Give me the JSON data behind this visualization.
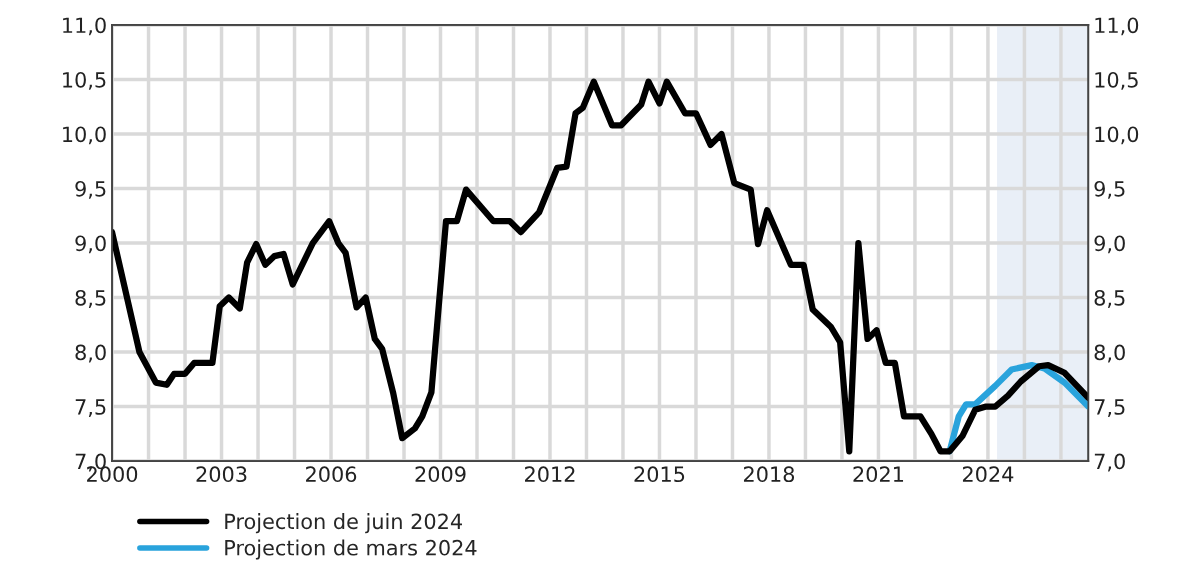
{
  "chart_data": {
    "type": "line",
    "xlim": [
      2000,
      2026.75
    ],
    "xticks": [
      {
        "value": 2000,
        "label": "2000"
      },
      {
        "value": 2001,
        "label": null
      },
      {
        "value": 2002,
        "label": null
      },
      {
        "value": 2003,
        "label": "2003"
      },
      {
        "value": 2004,
        "label": null
      },
      {
        "value": 2005,
        "label": null
      },
      {
        "value": 2006,
        "label": "2006"
      },
      {
        "value": 2007,
        "label": null
      },
      {
        "value": 2008,
        "label": null
      },
      {
        "value": 2009,
        "label": "2009"
      },
      {
        "value": 2010,
        "label": null
      },
      {
        "value": 2011,
        "label": null
      },
      {
        "value": 2012,
        "label": "2012"
      },
      {
        "value": 2013,
        "label": null
      },
      {
        "value": 2014,
        "label": null
      },
      {
        "value": 2015,
        "label": "2015"
      },
      {
        "value": 2016,
        "label": null
      },
      {
        "value": 2017,
        "label": null
      },
      {
        "value": 2018,
        "label": "2018"
      },
      {
        "value": 2019,
        "label": null
      },
      {
        "value": 2020,
        "label": null
      },
      {
        "value": 2021,
        "label": "2021"
      },
      {
        "value": 2022,
        "label": null
      },
      {
        "value": 2023,
        "label": null
      },
      {
        "value": 2024,
        "label": "2024"
      },
      {
        "value": 2025,
        "label": null
      },
      {
        "value": 2026,
        "label": null
      }
    ],
    "ylim": [
      7.0,
      11.0
    ],
    "yticks": [
      {
        "value": 7.0,
        "label": "7,0"
      },
      {
        "value": 7.5,
        "label": "7,5"
      },
      {
        "value": 8.0,
        "label": "8,0"
      },
      {
        "value": 8.5,
        "label": "8,5"
      },
      {
        "value": 9.0,
        "label": "9,0"
      },
      {
        "value": 9.5,
        "label": "9,5"
      },
      {
        "value": 10.0,
        "label": "10,0"
      },
      {
        "value": 10.5,
        "label": "10,5"
      },
      {
        "value": 11.0,
        "label": "11,0"
      }
    ],
    "y2lim": [
      7.0,
      11.0
    ],
    "y2ticks": [
      {
        "value": 7.0,
        "label": "7,0"
      },
      {
        "value": 7.5,
        "label": "7,5"
      },
      {
        "value": 8.0,
        "label": "8,0"
      },
      {
        "value": 8.5,
        "label": "8,5"
      },
      {
        "value": 9.0,
        "label": "9,0"
      },
      {
        "value": 9.5,
        "label": "9,5"
      },
      {
        "value": 10.0,
        "label": "10,0"
      },
      {
        "value": 10.5,
        "label": "10,5"
      },
      {
        "value": 11.0,
        "label": "11,0"
      }
    ],
    "grid": true,
    "legend": "bottom left",
    "line_style": "solid",
    "bands": [
      {
        "axis": "x",
        "from": 2024.25,
        "to": 2026.75,
        "color": "#e9eff7"
      }
    ],
    "series": [
      {
        "name": "Projection de mars 2024",
        "color": "#29a3dc",
        "x": [
          2022.95,
          2023.2,
          2023.4,
          2023.65,
          2024.2,
          2024.65,
          2025.2,
          2025.55,
          2026.1,
          2026.75
        ],
        "values": [
          7.09,
          7.41,
          7.52,
          7.52,
          7.69,
          7.84,
          7.88,
          7.85,
          7.72,
          7.5
        ]
      },
      {
        "name": "Projection de juin 2024",
        "color": "#000000",
        "x": [
          2000.0,
          2000.75,
          2001.2,
          2001.5,
          2001.7,
          2002.0,
          2002.25,
          2002.75,
          2002.95,
          2003.2,
          2003.5,
          2003.7,
          2003.95,
          2004.2,
          2004.45,
          2004.7,
          2004.95,
          2005.5,
          2005.95,
          2006.2,
          2006.4,
          2006.7,
          2006.95,
          2007.2,
          2007.4,
          2007.7,
          2007.95,
          2008.3,
          2008.5,
          2008.75,
          2009.15,
          2009.45,
          2009.7,
          2010.45,
          2010.9,
          2011.2,
          2011.7,
          2012.2,
          2012.45,
          2012.7,
          2012.9,
          2013.2,
          2013.7,
          2013.95,
          2014.5,
          2014.7,
          2015.0,
          2015.2,
          2015.7,
          2016.0,
          2016.4,
          2016.7,
          2017.05,
          2017.5,
          2017.7,
          2017.95,
          2018.6,
          2018.95,
          2019.2,
          2019.7,
          2019.95,
          2020.2,
          2020.45,
          2020.7,
          2020.95,
          2021.2,
          2021.45,
          2021.7,
          2022.15,
          2022.45,
          2022.7,
          2022.95,
          2023.3,
          2023.65,
          2023.95,
          2024.2,
          2024.55,
          2024.9,
          2025.4,
          2025.65,
          2026.1,
          2026.75
        ],
        "values": [
          9.1,
          8.0,
          7.72,
          7.7,
          7.8,
          7.8,
          7.9,
          7.9,
          8.42,
          8.5,
          8.4,
          8.82,
          8.99,
          8.8,
          8.88,
          8.9,
          8.62,
          9.0,
          9.2,
          9.0,
          8.91,
          8.41,
          8.5,
          8.12,
          8.03,
          7.63,
          7.21,
          7.3,
          7.41,
          7.63,
          9.2,
          9.2,
          9.49,
          9.2,
          9.2,
          9.1,
          9.28,
          9.69,
          9.7,
          10.19,
          10.24,
          10.48,
          10.08,
          10.08,
          10.27,
          10.48,
          10.28,
          10.48,
          10.19,
          10.19,
          9.9,
          10.0,
          9.55,
          9.49,
          8.99,
          9.3,
          8.8,
          8.8,
          8.39,
          8.23,
          8.09,
          7.09,
          9.0,
          8.12,
          8.2,
          7.9,
          7.9,
          7.41,
          7.41,
          7.25,
          7.09,
          7.09,
          7.23,
          7.47,
          7.5,
          7.5,
          7.6,
          7.73,
          7.87,
          7.88,
          7.81,
          7.58
        ]
      }
    ]
  }
}
